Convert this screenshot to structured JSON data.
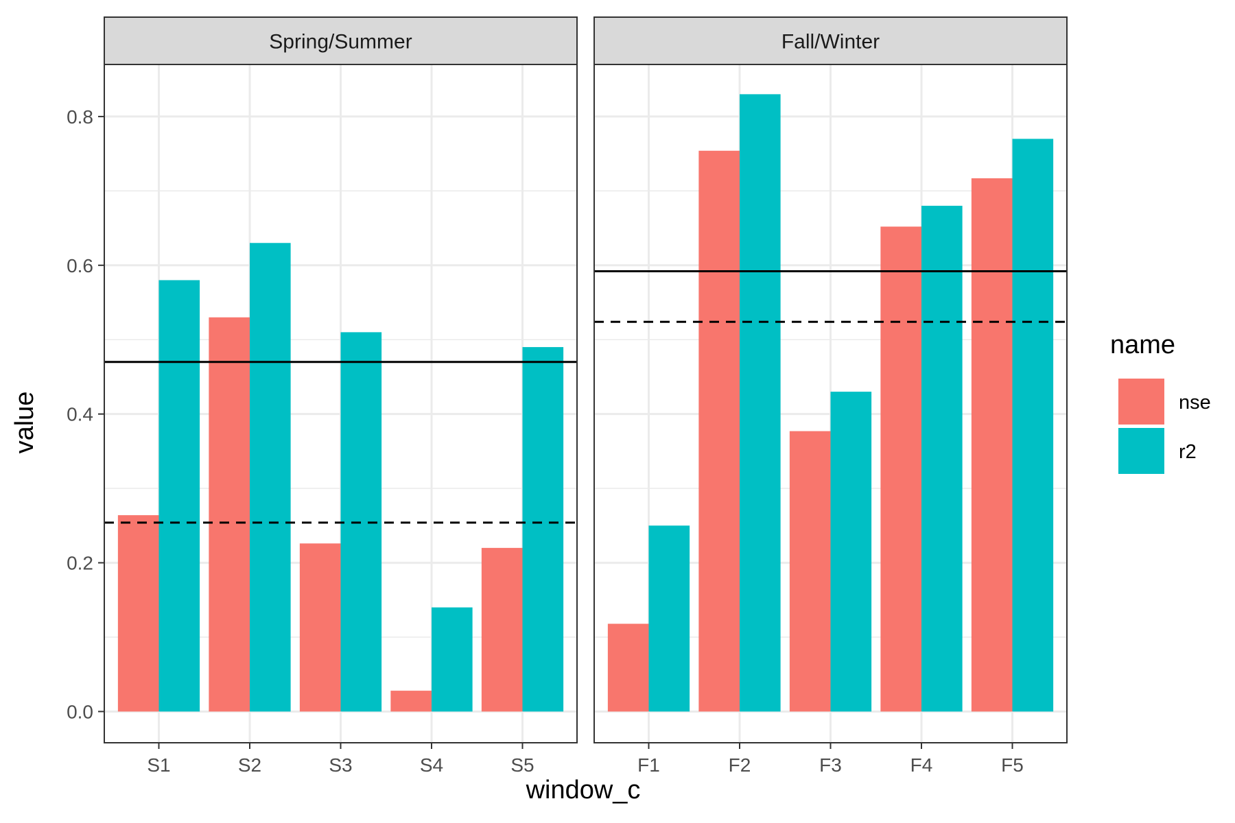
{
  "chart_data": {
    "type": "bar",
    "xlabel": "window_c",
    "ylabel": "value",
    "ylim": [
      -0.042,
      0.87
    ],
    "y_ticks": [
      0.0,
      0.2,
      0.4,
      0.6,
      0.8
    ],
    "y_tick_labels": [
      "0.0",
      "0.2",
      "0.4",
      "0.6",
      "0.8"
    ],
    "grid": true,
    "legend": {
      "title": "name",
      "position": "right",
      "entries": [
        {
          "label": "nse",
          "color": "#F8766D"
        },
        {
          "label": "r2",
          "color": "#00BFC4"
        }
      ]
    },
    "panels": [
      {
        "strip": "Spring/Summer",
        "categories": [
          "S1",
          "S2",
          "S3",
          "S4",
          "S5"
        ],
        "series": [
          {
            "name": "nse",
            "values": [
              0.264,
              0.53,
              0.226,
              0.028,
              0.22
            ]
          },
          {
            "name": "r2",
            "values": [
              0.58,
              0.63,
              0.51,
              0.14,
              0.49
            ]
          }
        ],
        "hlines": [
          {
            "value": 0.47,
            "style": "solid"
          },
          {
            "value": 0.254,
            "style": "dashed"
          }
        ]
      },
      {
        "strip": "Fall/Winter",
        "categories": [
          "F1",
          "F2",
          "F3",
          "F4",
          "F5"
        ],
        "series": [
          {
            "name": "nse",
            "values": [
              0.118,
              0.754,
              0.377,
              0.652,
              0.717
            ]
          },
          {
            "name": "r2",
            "values": [
              0.25,
              0.83,
              0.43,
              0.68,
              0.77
            ]
          }
        ],
        "hlines": [
          {
            "value": 0.592,
            "style": "solid"
          },
          {
            "value": 0.524,
            "style": "dashed"
          }
        ]
      }
    ]
  }
}
